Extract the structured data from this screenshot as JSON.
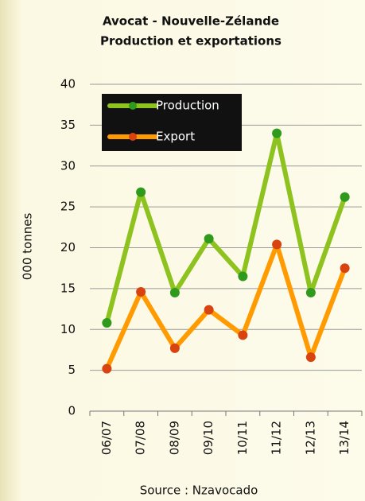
{
  "chart_data": {
    "type": "line",
    "title": "Avocat - Nouvelle-Zélande",
    "subtitle": "Production et exportations",
    "ylabel": "000 tonnes",
    "source": "Source : Nzavocado",
    "categories": [
      "06/07",
      "07/08",
      "08/09",
      "09/10",
      "10/11",
      "11/12",
      "12/13",
      "13/14"
    ],
    "series": [
      {
        "name": "Production",
        "color": "#8dc21f",
        "marker_color": "#2f9a1c",
        "values": [
          10.8,
          26.8,
          14.5,
          21.1,
          16.5,
          34,
          14.5,
          26.2
        ]
      },
      {
        "name": "Export",
        "color": "#ff9a00",
        "marker_color": "#d8430f",
        "values": [
          5.2,
          14.6,
          7.7,
          12.4,
          9.3,
          20.4,
          6.6,
          17.5
        ]
      }
    ],
    "ylim": [
      0,
      40
    ],
    "yticks": [
      0,
      5,
      10,
      15,
      20,
      25,
      30,
      35,
      40
    ],
    "grid": true,
    "legend": "top-left"
  }
}
